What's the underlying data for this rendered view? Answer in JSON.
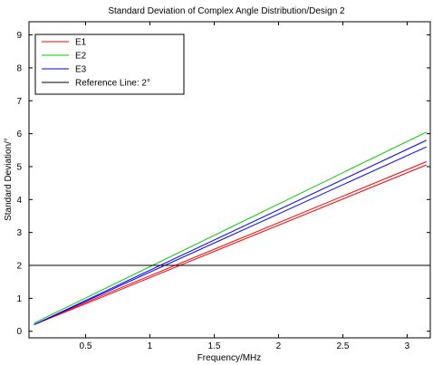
{
  "chart_data": {
    "type": "line",
    "title": "Standard Deviation of Complex Angle Distribution/Design 2",
    "xlabel": "Frequency/MHz",
    "ylabel": "Standard Deviation/°",
    "xlim": [
      0.06,
      3.18
    ],
    "ylim": [
      -0.2,
      9.4
    ],
    "xticks": [
      0.5,
      1,
      1.5,
      2,
      2.5,
      3
    ],
    "xtick_labels": [
      "0.5",
      "1",
      "1.5",
      "2",
      "2.5",
      "3"
    ],
    "yticks": [
      0,
      1,
      2,
      3,
      4,
      5,
      6,
      7,
      8,
      9
    ],
    "ytick_labels": [
      "0",
      "1",
      "2",
      "3",
      "4",
      "5",
      "6",
      "7",
      "8",
      "9"
    ],
    "grid": false,
    "legend_position": "top-left",
    "legend": [
      {
        "label": "E1",
        "color": "#ff0000"
      },
      {
        "label": "E2",
        "color": "#00cc00"
      },
      {
        "label": "E3",
        "color": "#0000ff"
      },
      {
        "label": "Reference Line: 2°",
        "color": "#000000"
      }
    ],
    "series": [
      {
        "name": "E1",
        "color": "#ff0000",
        "x": [
          0.1,
          0.7,
          3.15
        ],
        "y": [
          0.2,
          1.15,
          5.05
        ]
      },
      {
        "name": "E1",
        "color": "#ff0000",
        "x": [
          0.1,
          0.7,
          3.15
        ],
        "y": [
          0.2,
          1.2,
          5.15
        ]
      },
      {
        "name": "E2",
        "color": "#00cc00",
        "x": [
          0.1,
          3.15
        ],
        "y": [
          0.25,
          6.05
        ]
      },
      {
        "name": "E3",
        "color": "#0000ff",
        "x": [
          0.1,
          3.15
        ],
        "y": [
          0.2,
          5.8
        ]
      },
      {
        "name": "E3",
        "color": "#0000ff",
        "x": [
          0.1,
          3.15
        ],
        "y": [
          0.2,
          5.6
        ]
      },
      {
        "name": "Reference Line: 2°",
        "color": "#000000",
        "x": [
          0.06,
          3.18
        ],
        "y": [
          2,
          2
        ]
      }
    ]
  }
}
